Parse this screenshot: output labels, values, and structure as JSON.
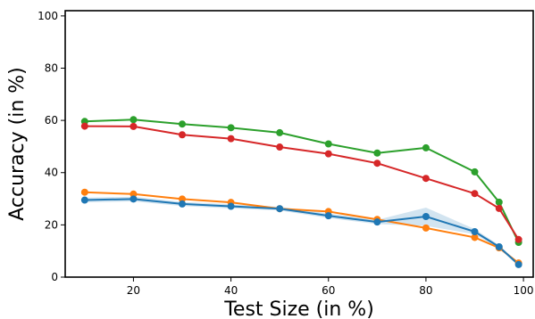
{
  "chart_data": {
    "type": "line",
    "title": "",
    "xlabel": "Test Size (in %)",
    "ylabel": "Accuracy (in %)",
    "xlim": [
      6,
      102
    ],
    "ylim": [
      0,
      102
    ],
    "xticks": [
      20,
      40,
      60,
      80,
      100
    ],
    "yticks": [
      0,
      20,
      40,
      60,
      80,
      100
    ],
    "grid": false,
    "legend": "none",
    "x": [
      10,
      20,
      30,
      40,
      50,
      60,
      70,
      80,
      90,
      95,
      99
    ],
    "series": [
      {
        "color": "#2ca02c",
        "values": [
          59.6,
          60.3,
          58.6,
          57.2,
          55.3,
          51.0,
          47.5,
          49.5,
          40.3,
          28.7,
          13.3
        ]
      },
      {
        "color": "#d62728",
        "values": [
          57.8,
          57.7,
          54.5,
          53.0,
          49.8,
          47.2,
          43.6,
          37.8,
          32.0,
          26.3,
          14.4
        ]
      },
      {
        "color": "#ff7f0e",
        "values": [
          32.5,
          31.8,
          29.9,
          28.6,
          26.2,
          25.1,
          22.1,
          18.8,
          15.2,
          11.2,
          5.4
        ]
      },
      {
        "color": "#1f77b4",
        "values": [
          29.5,
          29.9,
          28.0,
          27.1,
          26.2,
          23.5,
          21.1,
          23.2,
          17.4,
          11.6,
          4.8
        ],
        "band_low": [
          28.6,
          29.0,
          27.2,
          26.3,
          25.5,
          22.6,
          20.3,
          19.6,
          16.4,
          10.9,
          4.2
        ],
        "band_high": [
          30.4,
          30.8,
          28.8,
          27.9,
          26.9,
          24.4,
          21.9,
          26.6,
          18.4,
          12.3,
          5.4
        ]
      }
    ]
  }
}
